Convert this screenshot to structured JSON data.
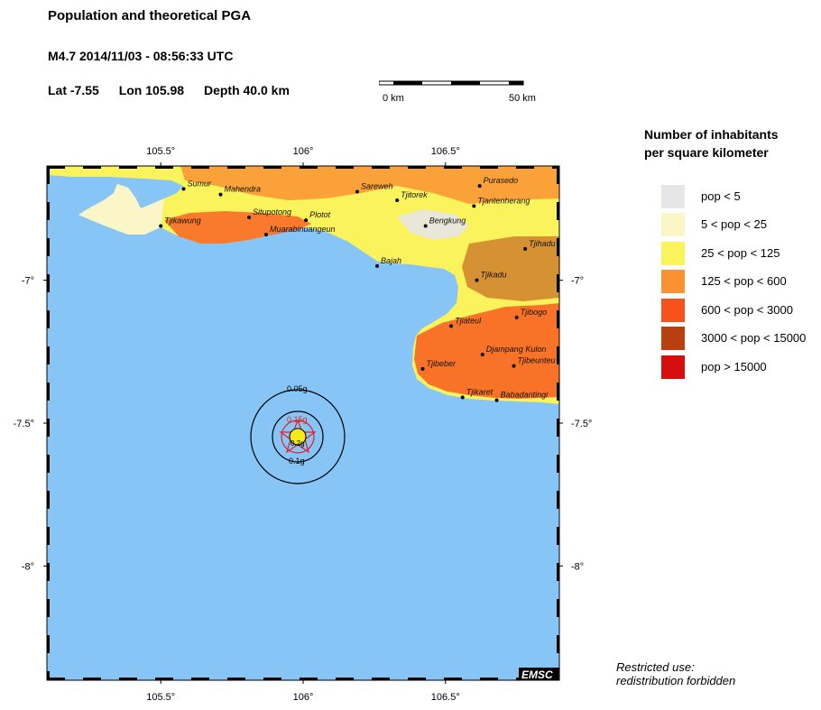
{
  "header": {
    "title": "Population and theoretical PGA",
    "event": "M4.7  2014/11/03 - 08:56:33 UTC",
    "lat": "Lat -7.55",
    "lon": "Lon 105.98",
    "depth": "Depth  40.0 km"
  },
  "scale_bar": {
    "start": "0 km",
    "end": "50 km"
  },
  "map": {
    "lon_ticks": [
      "105.5°",
      "106°",
      "106.5°"
    ],
    "lat_ticks": [
      "-7°",
      "-7.5°",
      "-8°"
    ],
    "epicenter": {
      "lat": -7.55,
      "lon": 105.98
    },
    "pga_labels": [
      "0.05g",
      "0.15g",
      "0.1g",
      "0.2g"
    ],
    "brand": "EMSC",
    "colors": {
      "sea": "#87c5f7",
      "rings": "#000000",
      "ring_inner": "#e0202a",
      "epicenter": "#f4ea1a"
    },
    "places": [
      {
        "name": "Sumur",
        "lat": -6.68,
        "lon": 105.58
      },
      {
        "name": "Mahendra",
        "lat": -6.7,
        "lon": 105.71
      },
      {
        "name": "Situpotong",
        "lat": -6.78,
        "lon": 105.81
      },
      {
        "name": "Tjikawung",
        "lat": -6.81,
        "lon": 105.5
      },
      {
        "name": "Muarabinuangeun",
        "lat": -6.84,
        "lon": 105.87
      },
      {
        "name": "Plotot",
        "lat": -6.79,
        "lon": 106.01
      },
      {
        "name": "Sareweh",
        "lat": -6.69,
        "lon": 106.19
      },
      {
        "name": "Tjitorek",
        "lat": -6.72,
        "lon": 106.33
      },
      {
        "name": "Bengkung",
        "lat": -6.81,
        "lon": 106.43
      },
      {
        "name": "Purasedo",
        "lat": -6.67,
        "lon": 106.62
      },
      {
        "name": "Tjantenherang",
        "lat": -6.74,
        "lon": 106.6
      },
      {
        "name": "Bajah",
        "lat": -6.95,
        "lon": 106.26
      },
      {
        "name": "Tjihadu",
        "lat": -6.89,
        "lon": 106.78
      },
      {
        "name": "Tjikadu",
        "lat": -7.0,
        "lon": 106.61
      },
      {
        "name": "Tjibogo",
        "lat": -7.13,
        "lon": 106.75
      },
      {
        "name": "Tjiateul",
        "lat": -7.16,
        "lon": 106.52
      },
      {
        "name": "Djampang Kulon",
        "lat": -7.26,
        "lon": 106.63
      },
      {
        "name": "Tjibeber",
        "lat": -7.31,
        "lon": 106.42
      },
      {
        "name": "Tjibeunteu",
        "lat": -7.3,
        "lon": 106.74
      },
      {
        "name": "Tjikaret",
        "lat": -7.41,
        "lon": 106.56
      },
      {
        "name": "Babadantingi",
        "lat": -7.42,
        "lon": 106.68
      }
    ]
  },
  "legend": {
    "title_line1": "Number of inhabitants",
    "title_line2": "per square kilometer",
    "items": [
      {
        "label": "pop < 5",
        "color": "#e6e6e6"
      },
      {
        "label": "5 < pop < 25",
        "color": "#fbf6c8"
      },
      {
        "label": "25 < pop < 125",
        "color": "#fbf35c"
      },
      {
        "label": "125 < pop < 600",
        "color": "#fa9232"
      },
      {
        "label": "600 < pop < 3000",
        "color": "#f8521c"
      },
      {
        "label": "3000 < pop < 15000",
        "color": "#b83f10"
      },
      {
        "label": "pop > 15000",
        "color": "#d60e0e"
      }
    ]
  },
  "note": {
    "line1": "Restricted use:",
    "line2": "redistribution forbidden"
  }
}
